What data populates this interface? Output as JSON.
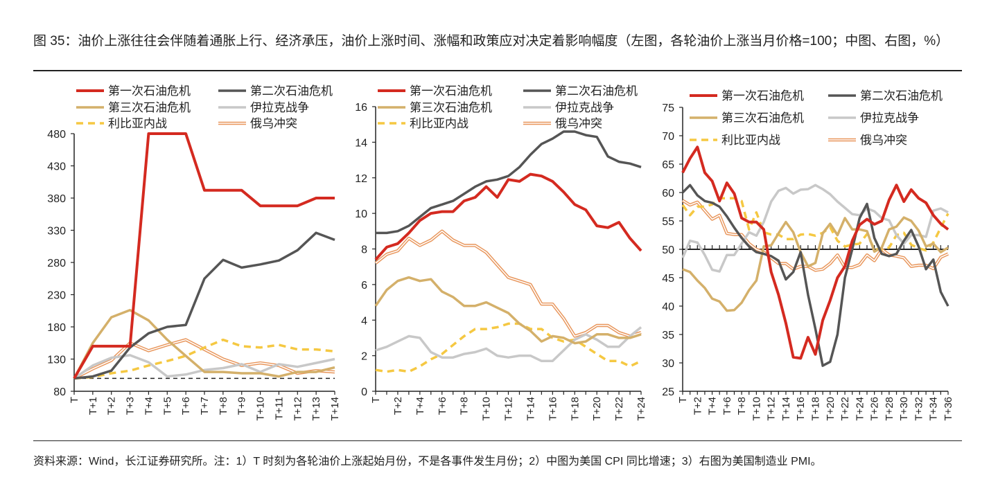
{
  "title": "图 35：油价上涨往往会伴随着通胀上行、经济承压，油价上涨时间、涨幅和政策应对决定着影响幅度（左图，各轮油价上涨当月价格=100；中图、右图，%）",
  "footnote": "资料来源：Wind，长江证券研究所。注：1）T 时刻为各轮油价上涨起始月份，不是各事件发生月份；2）中图为美国 CPI 同比增速；3）右图为美国制造业 PMI。",
  "series_styles": [
    {
      "name": "第一次石油危机",
      "color": "#d42a20",
      "style": "solid"
    },
    {
      "name": "第二次石油危机",
      "color": "#555555",
      "style": "solid"
    },
    {
      "name": "第三次石油危机",
      "color": "#d4b06a",
      "style": "solid"
    },
    {
      "name": "伊拉克战争",
      "color": "#c8c8c8",
      "style": "solid"
    },
    {
      "name": "利比亚内战",
      "color": "#f5c842",
      "style": "dashed"
    },
    {
      "name": "俄乌冲突",
      "color": "#e8955a",
      "style": "double"
    }
  ],
  "chart_data": [
    {
      "type": "line",
      "title": "各轮油价上涨当月价格=100",
      "ylim": [
        80,
        480
      ],
      "yticks": [
        80,
        130,
        180,
        230,
        280,
        330,
        380,
        430,
        480
      ],
      "reference_line": 100,
      "x": [
        "T",
        "T+1",
        "T+2",
        "T+3",
        "T+4",
        "T+5",
        "T+6",
        "T+7",
        "T+8",
        "T+9",
        "T+10",
        "T+11",
        "T+12",
        "T+13",
        "T+14"
      ],
      "xlabel_every": 1,
      "legend": "top",
      "series": [
        {
          "name": "第一次石油危机",
          "values": [
            100,
            150,
            150,
            150,
            480,
            480,
            480,
            392,
            392,
            392,
            368,
            368,
            368,
            380,
            380
          ]
        },
        {
          "name": "第二次石油危机",
          "values": [
            100,
            103,
            112,
            148,
            170,
            180,
            183,
            255,
            284,
            272,
            277,
            283,
            299,
            326,
            315
          ]
        },
        {
          "name": "第三次石油危机",
          "values": [
            100,
            155,
            195,
            206,
            190,
            160,
            135,
            110,
            110,
            108,
            108,
            103,
            110,
            110,
            117
          ]
        },
        {
          "name": "伊拉克战争",
          "values": [
            100,
            120,
            132,
            136,
            125,
            103,
            106,
            113,
            116,
            122,
            110,
            122,
            118,
            124,
            130
          ]
        },
        {
          "name": "利比亚内战",
          "values": [
            100,
            102,
            108,
            112,
            120,
            127,
            135,
            148,
            160,
            150,
            148,
            152,
            145,
            145,
            142
          ]
        },
        {
          "name": "俄乌冲突",
          "values": [
            100,
            115,
            128,
            155,
            143,
            152,
            160,
            145,
            130,
            120,
            124,
            120,
            108,
            112,
            110
          ]
        }
      ]
    },
    {
      "type": "line",
      "title": "美国 CPI 同比增速（%）",
      "ylim": [
        0,
        16
      ],
      "yticks": [
        0,
        2,
        4,
        6,
        8,
        10,
        12,
        14,
        16
      ],
      "x": [
        "T",
        "T+1",
        "T+2",
        "T+3",
        "T+4",
        "T+5",
        "T+6",
        "T+7",
        "T+8",
        "T+9",
        "T+10",
        "T+11",
        "T+12",
        "T+13",
        "T+14",
        "T+15",
        "T+16",
        "T+17",
        "T+18",
        "T+19",
        "T+20",
        "T+21",
        "T+22",
        "T+23",
        "T+24"
      ],
      "xlabel_every": 2,
      "legend": "top",
      "series": [
        {
          "name": "第一次石油危机",
          "values": [
            7.4,
            8.1,
            8.3,
            8.9,
            9.6,
            10.0,
            10.1,
            10.1,
            10.7,
            10.9,
            11.5,
            10.9,
            11.9,
            11.8,
            12.2,
            12.1,
            11.8,
            11.2,
            10.5,
            10.2,
            9.3,
            9.2,
            9.5,
            8.6,
            7.9
          ]
        },
        {
          "name": "第二次石油危机",
          "values": [
            8.9,
            8.9,
            9.0,
            9.3,
            9.8,
            10.3,
            10.5,
            10.7,
            11.1,
            11.5,
            11.8,
            11.9,
            12.1,
            12.6,
            13.3,
            13.9,
            14.2,
            14.6,
            14.6,
            14.4,
            14.3,
            13.2,
            12.9,
            12.8,
            12.6
          ]
        },
        {
          "name": "第三次石油危机",
          "values": [
            4.8,
            5.7,
            6.2,
            6.4,
            6.2,
            6.3,
            5.6,
            5.3,
            4.8,
            4.8,
            5.0,
            4.7,
            4.4,
            3.8,
            3.4,
            2.8,
            3.1,
            3.0,
            2.7,
            2.8,
            3.2,
            3.2,
            3.0,
            3.0,
            3.2
          ]
        },
        {
          "name": "伊拉克战争",
          "values": [
            2.3,
            2.5,
            2.8,
            3.1,
            3.0,
            2.2,
            1.9,
            1.9,
            2.1,
            2.2,
            2.4,
            2.0,
            1.9,
            2.0,
            2.0,
            1.7,
            1.7,
            2.3,
            2.9,
            3.2,
            2.9,
            2.5,
            2.5,
            3.1,
            3.6
          ]
        },
        {
          "name": "利比亚内战",
          "values": [
            1.2,
            1.1,
            1.2,
            1.1,
            1.4,
            1.8,
            2.1,
            2.6,
            3.1,
            3.5,
            3.5,
            3.6,
            3.8,
            3.8,
            3.5,
            3.5,
            3.0,
            2.8,
            2.9,
            2.5,
            2.1,
            1.7,
            1.7,
            1.4,
            1.7
          ]
        },
        {
          "name": "俄乌冲突",
          "values": [
            7.2,
            7.7,
            7.9,
            8.6,
            8.2,
            8.5,
            9.0,
            8.5,
            8.2,
            8.2,
            7.8,
            7.1,
            6.4,
            6.2,
            6.0,
            4.9,
            4.9,
            4.1,
            3.1,
            3.3,
            3.7,
            3.7,
            3.3,
            3.1,
            3.3
          ]
        }
      ]
    },
    {
      "type": "line",
      "title": "美国制造业 PMI",
      "ylim": [
        25,
        75
      ],
      "yticks": [
        25,
        30,
        35,
        40,
        45,
        50,
        55,
        60,
        65,
        70,
        75
      ],
      "reference_line": 50,
      "x": [
        "T",
        "T+1",
        "T+2",
        "T+3",
        "T+4",
        "T+5",
        "T+6",
        "T+7",
        "T+8",
        "T+9",
        "T+10",
        "T+11",
        "T+12",
        "T+13",
        "T+14",
        "T+15",
        "T+16",
        "T+17",
        "T+18",
        "T+19",
        "T+20",
        "T+21",
        "T+22",
        "T+23",
        "T+24",
        "T+25",
        "T+26",
        "T+27",
        "T+28",
        "T+29",
        "T+30",
        "T+31",
        "T+32",
        "T+33",
        "T+34",
        "T+35",
        "T+36"
      ],
      "xlabel_every": 2,
      "legend": "top",
      "series": [
        {
          "name": "第一次石油危机",
          "values": [
            63.5,
            66,
            68,
            63.5,
            62,
            58.5,
            61.7,
            59.8,
            55.5,
            54.8,
            54.8,
            53.5,
            46,
            42,
            37,
            31,
            30.8,
            34.5,
            31.5,
            37.5,
            41,
            45,
            47,
            51.5,
            54.3,
            55.3,
            54.4,
            55,
            58.7,
            61.3,
            58.4,
            60.5,
            59,
            58.2,
            56,
            54.5,
            53.5
          ]
        },
        {
          "name": "第二次石油危机",
          "values": [
            60,
            61.3,
            59.5,
            58.5,
            58.2,
            57.5,
            55.8,
            53.8,
            52,
            50.5,
            49.5,
            49.2,
            48.8,
            48,
            44.7,
            46,
            49.5,
            42,
            36,
            29.5,
            30.2,
            35,
            45,
            50,
            55.5,
            58,
            52,
            49.2,
            48.8,
            49.2,
            51.5,
            53.4,
            50.5,
            46.5,
            48.2,
            42.5,
            40
          ]
        },
        {
          "name": "第三次石油危机",
          "values": [
            46.5,
            46,
            44.5,
            43.2,
            41.3,
            40.8,
            39.2,
            39.3,
            40.6,
            42.8,
            44.5,
            50.5,
            50.7,
            52.8,
            54.8,
            53,
            49.5,
            47,
            47.6,
            52.8,
            54.5,
            52.5,
            55.5,
            53.5,
            53.5,
            53.2,
            49.6,
            50.3,
            53.5,
            54,
            55.6,
            55,
            53.3,
            50.5,
            51,
            49.5,
            50.3
          ]
        },
        {
          "name": "伊拉克战争",
          "values": [
            48.5,
            51.5,
            51.2,
            49,
            46.4,
            46.1,
            49,
            49,
            51,
            53,
            52.4,
            54.8,
            58.4,
            60.3,
            60.8,
            59.8,
            60.5,
            60.6,
            61.3,
            60.6,
            59.7,
            58.4,
            57.3,
            56.2,
            56,
            57.2,
            56.7,
            55.5,
            55.1,
            52.5,
            51,
            52.5,
            52.5,
            52.2,
            56.8,
            57.2,
            56.5
          ]
        },
        {
          "name": "利比亚内战",
          "values": [
            57.8,
            56,
            57.5,
            57.5,
            57.9,
            59,
            59,
            59,
            58.5,
            53.5,
            56.5,
            53,
            52.6,
            52.6,
            51.8,
            51.8,
            52.6,
            52.7,
            52.4,
            52.9,
            53.9,
            51.5,
            50.5,
            50.8,
            51,
            52.7,
            50,
            50,
            50.3,
            52.5,
            52.9,
            50.8,
            50.2,
            49.8,
            51.2,
            53.8,
            56.3
          ]
        },
        {
          "name": "俄乌冲突",
          "values": [
            58.6,
            57.8,
            58.3,
            56.8,
            55.3,
            56,
            52.8,
            52.6,
            52.6,
            51,
            50,
            49.5,
            48.5,
            47.5,
            47.5,
            46.5,
            47,
            47,
            46.3,
            46.5,
            47.5,
            49,
            46.8,
            46.8,
            47.3,
            49,
            48,
            50,
            49,
            48.8,
            48.5,
            47,
            47.2,
            47.2,
            46.6,
            48.6,
            49.2
          ]
        }
      ]
    }
  ]
}
